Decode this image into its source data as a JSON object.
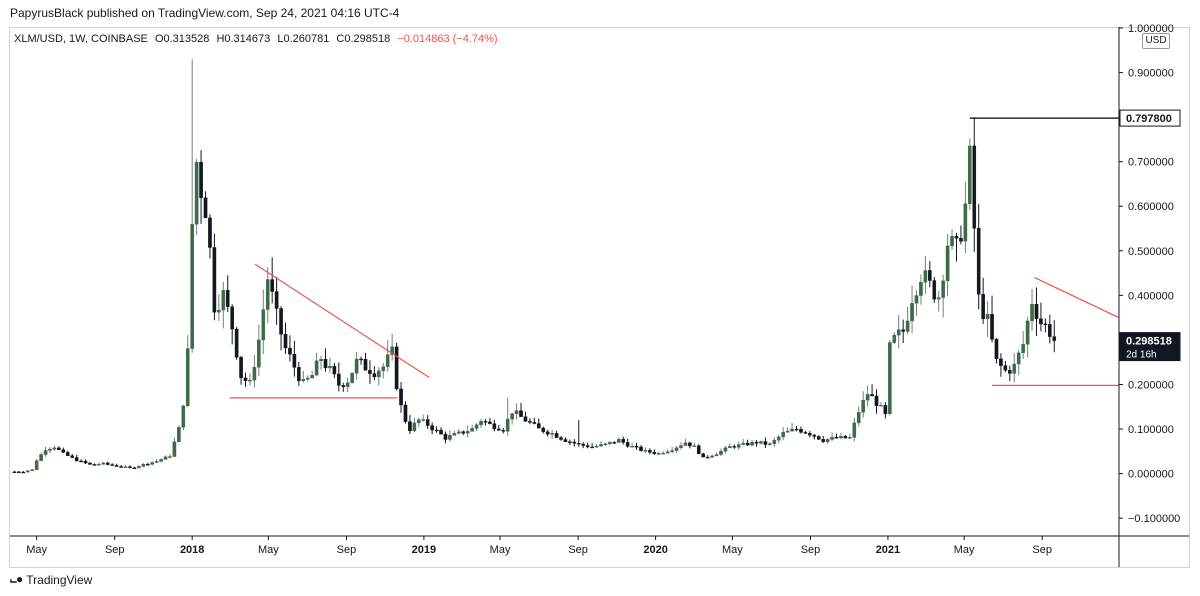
{
  "publish_line": "PapyrusBlack published on TradingView.com, Sep 24, 2021 04:16 UTC-4",
  "symbol": {
    "name": "XLM/USD, 1W, COINBASE",
    "open": "O0.313528",
    "high": "H0.314673",
    "low": "L0.260781",
    "close": "C0.298518",
    "change": "−0.014863 (−4.74%)"
  },
  "currency_label": "USD",
  "footer": {
    "logo_icon": "tradingview-logo-icon",
    "brand": "TradingView"
  },
  "colors": {
    "up": "#26a69a",
    "up_body": "#3d6b45",
    "down": "#131722",
    "trendline": "#ef5350",
    "wick": "#787b86"
  },
  "chart_data": {
    "type": "candlestick",
    "title": "",
    "xlabel": "",
    "ylabel": "",
    "ylim": [
      -0.14,
      1.0
    ],
    "y_ticks": [
      "1.000000",
      "0.900000",
      "0.800000",
      "0.700000",
      "0.600000",
      "0.500000",
      "0.400000",
      "0.300000",
      "0.200000",
      "0.100000",
      "0.000000",
      "−0.100000"
    ],
    "y_tick_values": [
      1.0,
      0.9,
      0.8,
      0.7,
      0.6,
      0.5,
      0.4,
      0.3,
      0.2,
      0.1,
      0.0,
      -0.1
    ],
    "x_ticks": [
      {
        "label": "May",
        "date": "2017-05-01"
      },
      {
        "label": "Sep",
        "date": "2017-09-01"
      },
      {
        "label": "2018",
        "date": "2018-01-01"
      },
      {
        "label": "May",
        "date": "2018-05-01"
      },
      {
        "label": "Sep",
        "date": "2018-09-01"
      },
      {
        "label": "2019",
        "date": "2019-01-01"
      },
      {
        "label": "May",
        "date": "2019-05-01"
      },
      {
        "label": "Sep",
        "date": "2019-09-01"
      },
      {
        "label": "2020",
        "date": "2020-01-01"
      },
      {
        "label": "May",
        "date": "2020-05-01"
      },
      {
        "label": "Sep",
        "date": "2020-09-01"
      },
      {
        "label": "2021",
        "date": "2021-01-01"
      },
      {
        "label": "May",
        "date": "2021-05-01"
      },
      {
        "label": "Sep",
        "date": "2021-09-01"
      }
    ],
    "price_labels": [
      {
        "text": "0.797800",
        "value": 0.7978,
        "style": "outline"
      },
      {
        "text": "0.298518",
        "value": 0.298518,
        "style": "filled",
        "sub": "2d 16h"
      }
    ],
    "levels": [
      {
        "value": 0.7978,
        "from": "2021-05-10",
        "to": "2021-12-31",
        "color": "#000000"
      },
      {
        "value": 0.198,
        "from": "2021-06-14",
        "to": "2021-12-31",
        "color": "#ef5350"
      },
      {
        "value": 0.17,
        "from": "2018-03-01",
        "to": "2018-11-20",
        "color": "#ef5350"
      }
    ],
    "trendlines": [
      {
        "from": {
          "date": "2018-04-10",
          "value": 0.47
        },
        "to": {
          "date": "2019-01-10",
          "value": 0.215
        },
        "color": "#ef5350"
      },
      {
        "from": {
          "date": "2021-08-20",
          "value": 0.44
        },
        "to": {
          "date": "2021-12-31",
          "value": 0.35
        },
        "color": "#ef5350"
      }
    ],
    "waypoints": [
      [
        "2017-03-27",
        0.004
      ],
      [
        "2017-04-10",
        0.005
      ],
      [
        "2017-04-24",
        0.008
      ],
      [
        "2017-05-01",
        0.03
      ],
      [
        "2017-05-15",
        0.055
      ],
      [
        "2017-05-29",
        0.06
      ],
      [
        "2017-06-12",
        0.045
      ],
      [
        "2017-07-03",
        0.03
      ],
      [
        "2017-07-24",
        0.02
      ],
      [
        "2017-08-14",
        0.022
      ],
      [
        "2017-09-04",
        0.017
      ],
      [
        "2017-09-25",
        0.012
      ],
      [
        "2017-10-16",
        0.02
      ],
      [
        "2017-11-06",
        0.028
      ],
      [
        "2017-11-27",
        0.04
      ],
      [
        "2017-12-11",
        0.1
      ],
      [
        "2017-12-18",
        0.16
      ],
      [
        "2017-12-25",
        0.27
      ],
      [
        "2018-01-01",
        0.56
      ],
      [
        "2018-01-08",
        0.7
      ],
      [
        "2018-01-15",
        0.64
      ],
      [
        "2018-01-22",
        0.6
      ],
      [
        "2018-01-29",
        0.5
      ],
      [
        "2018-02-05",
        0.38
      ],
      [
        "2018-02-19",
        0.4
      ],
      [
        "2018-03-05",
        0.33
      ],
      [
        "2018-03-19",
        0.22
      ],
      [
        "2018-04-02",
        0.2
      ],
      [
        "2018-04-16",
        0.3
      ],
      [
        "2018-04-30",
        0.44
      ],
      [
        "2018-05-14",
        0.35
      ],
      [
        "2018-05-28",
        0.28
      ],
      [
        "2018-06-11",
        0.24
      ],
      [
        "2018-06-25",
        0.2
      ],
      [
        "2018-07-09",
        0.22
      ],
      [
        "2018-07-23",
        0.26
      ],
      [
        "2018-08-06",
        0.23
      ],
      [
        "2018-08-20",
        0.2
      ],
      [
        "2018-09-03",
        0.21
      ],
      [
        "2018-09-17",
        0.25
      ],
      [
        "2018-10-01",
        0.24
      ],
      [
        "2018-10-15",
        0.23
      ],
      [
        "2018-10-29",
        0.24
      ],
      [
        "2018-11-12",
        0.27
      ],
      [
        "2018-11-19",
        0.2
      ],
      [
        "2018-11-26",
        0.15
      ],
      [
        "2018-12-03",
        0.12
      ],
      [
        "2018-12-10",
        0.1
      ],
      [
        "2018-12-24",
        0.12
      ],
      [
        "2019-01-07",
        0.11
      ],
      [
        "2019-01-21",
        0.095
      ],
      [
        "2019-02-04",
        0.08
      ],
      [
        "2019-02-25",
        0.09
      ],
      [
        "2019-03-18",
        0.1
      ],
      [
        "2019-04-01",
        0.12
      ],
      [
        "2019-04-15",
        0.11
      ],
      [
        "2019-05-06",
        0.1
      ],
      [
        "2019-05-20",
        0.14
      ],
      [
        "2019-06-10",
        0.12
      ],
      [
        "2019-07-01",
        0.1
      ],
      [
        "2019-07-22",
        0.09
      ],
      [
        "2019-08-12",
        0.075
      ],
      [
        "2019-09-02",
        0.065
      ],
      [
        "2019-09-23",
        0.06
      ],
      [
        "2019-10-14",
        0.065
      ],
      [
        "2019-11-04",
        0.075
      ],
      [
        "2019-11-25",
        0.06
      ],
      [
        "2019-12-16",
        0.05
      ],
      [
        "2020-01-06",
        0.045
      ],
      [
        "2020-01-27",
        0.055
      ],
      [
        "2020-02-17",
        0.07
      ],
      [
        "2020-03-02",
        0.06
      ],
      [
        "2020-03-16",
        0.035
      ],
      [
        "2020-04-06",
        0.045
      ],
      [
        "2020-04-27",
        0.06
      ],
      [
        "2020-05-18",
        0.065
      ],
      [
        "2020-06-08",
        0.07
      ],
      [
        "2020-06-29",
        0.065
      ],
      [
        "2020-07-20",
        0.09
      ],
      [
        "2020-08-10",
        0.1
      ],
      [
        "2020-08-31",
        0.09
      ],
      [
        "2020-09-21",
        0.075
      ],
      [
        "2020-10-12",
        0.08
      ],
      [
        "2020-11-02",
        0.08
      ],
      [
        "2020-11-16",
        0.14
      ],
      [
        "2020-11-30",
        0.18
      ],
      [
        "2020-12-14",
        0.16
      ],
      [
        "2020-12-28",
        0.13
      ],
      [
        "2021-01-04",
        0.28
      ],
      [
        "2021-01-11",
        0.3
      ],
      [
        "2021-01-25",
        0.32
      ],
      [
        "2021-02-08",
        0.4
      ],
      [
        "2021-02-22",
        0.45
      ],
      [
        "2021-03-08",
        0.42
      ],
      [
        "2021-03-22",
        0.4
      ],
      [
        "2021-04-05",
        0.52
      ],
      [
        "2021-04-19",
        0.5
      ],
      [
        "2021-05-03",
        0.6
      ],
      [
        "2021-05-10",
        0.7
      ],
      [
        "2021-05-17",
        0.55
      ],
      [
        "2021-05-24",
        0.39
      ],
      [
        "2021-06-07",
        0.34
      ],
      [
        "2021-06-21",
        0.25
      ],
      [
        "2021-07-05",
        0.23
      ],
      [
        "2021-07-19",
        0.24
      ],
      [
        "2021-08-02",
        0.29
      ],
      [
        "2021-08-16",
        0.39
      ],
      [
        "2021-08-30",
        0.34
      ],
      [
        "2021-09-13",
        0.32
      ],
      [
        "2021-09-20",
        0.298518
      ]
    ],
    "spikes": [
      {
        "date": "2018-01-01",
        "high": 0.93
      },
      {
        "date": "2021-05-17",
        "high": 0.7978
      },
      {
        "date": "2019-05-13",
        "high": 0.17
      },
      {
        "date": "2019-09-02",
        "high": 0.12
      }
    ]
  }
}
